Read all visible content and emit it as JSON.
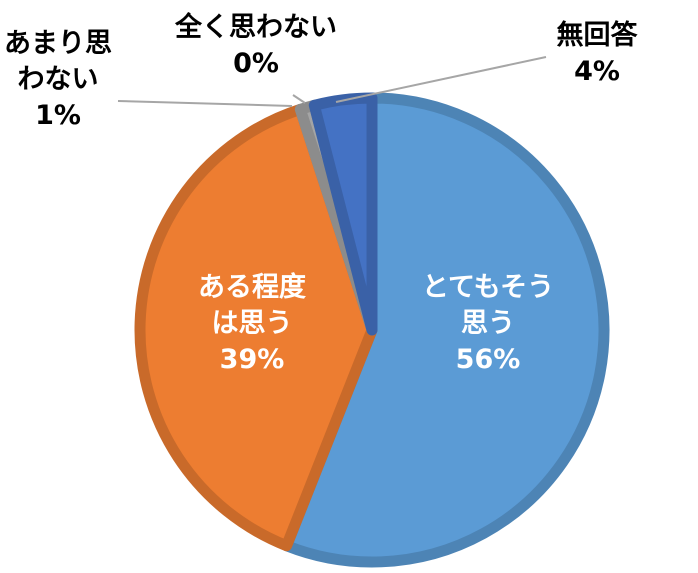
{
  "chart_data": {
    "type": "pie",
    "title": "",
    "slices": [
      {
        "label_lines": [
          "とてもそう",
          "思う"
        ],
        "value": 56,
        "value_label": "56%",
        "color": "#5B9BD5"
      },
      {
        "label_lines": [
          "ある程度",
          "は思う"
        ],
        "value": 39,
        "value_label": "39%",
        "color": "#ED7D31"
      },
      {
        "label_lines": [
          "あまり思",
          "わない"
        ],
        "value": 1,
        "value_label": "1%",
        "color": "#A5A5A5"
      },
      {
        "label_lines": [
          "全く思わない"
        ],
        "value": 0,
        "value_label": "0%",
        "color": "#FFC000"
      },
      {
        "label_lines": [
          "無回答"
        ],
        "value": 4,
        "value_label": "4%",
        "color": "#4472C4"
      }
    ],
    "start_angle_deg": 0,
    "direction": "clockwise",
    "legend": "none",
    "data_labels": true
  }
}
